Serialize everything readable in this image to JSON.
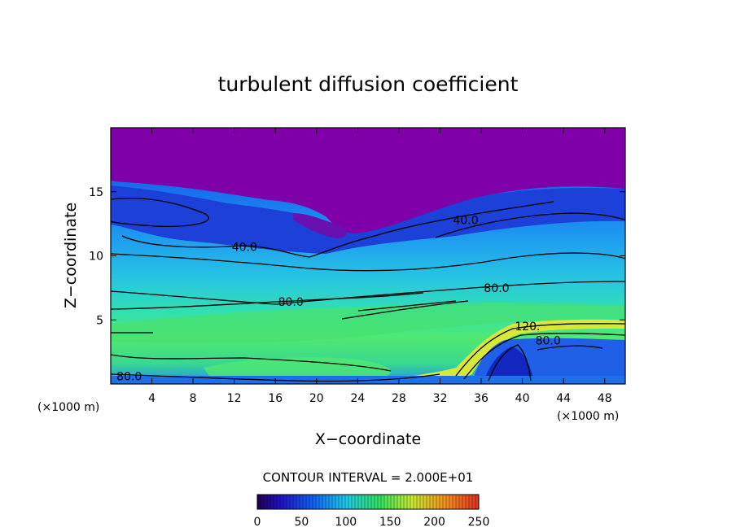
{
  "chart_data": {
    "type": "heatmap",
    "title": "turbulent diffusion coefficient",
    "xlabel": "X−coordinate",
    "ylabel": "Z−coordinate",
    "x_unit_left": "(×1000 m)",
    "x_unit_right": "(×1000 m)",
    "xlim": [
      0,
      50
    ],
    "ylim": [
      0,
      20
    ],
    "x_ticks": [
      "4",
      "8",
      "12",
      "16",
      "20",
      "24",
      "28",
      "32",
      "36",
      "40",
      "44",
      "48"
    ],
    "x_tick_values": [
      4,
      8,
      12,
      16,
      20,
      24,
      28,
      32,
      36,
      40,
      44,
      48
    ],
    "y_ticks": [
      "5",
      "10",
      "15"
    ],
    "y_tick_values": [
      5,
      10,
      15
    ],
    "contour_interval_text": "CONTOUR INTERVAL = 2.000E+01",
    "contour_labels": [
      {
        "text": "40.0",
        "x": 13,
        "z": 10.7
      },
      {
        "text": "40.0",
        "x": 34.5,
        "z": 12.8
      },
      {
        "text": "80.0",
        "x": 17.5,
        "z": 6.4
      },
      {
        "text": "80.0",
        "x": 37.5,
        "z": 7.5
      },
      {
        "text": "120.",
        "x": 40.5,
        "z": 4.5
      },
      {
        "text": "80.0",
        "x": 42.5,
        "z": 3.4
      },
      {
        "text": "80.0",
        "x": 1.8,
        "z": 0.6
      }
    ],
    "colorbar": {
      "ticks": [
        "0",
        "50",
        "100",
        "150",
        "200",
        "250"
      ],
      "tick_values": [
        0,
        50,
        100,
        150,
        200,
        250
      ],
      "range": [
        0,
        250
      ]
    },
    "colors": {
      "top_purple": "#7f00a8",
      "blue": "#1a4ae0",
      "cyan": "#30c0e8",
      "green": "#40e070",
      "yellow": "#d8e838"
    }
  }
}
